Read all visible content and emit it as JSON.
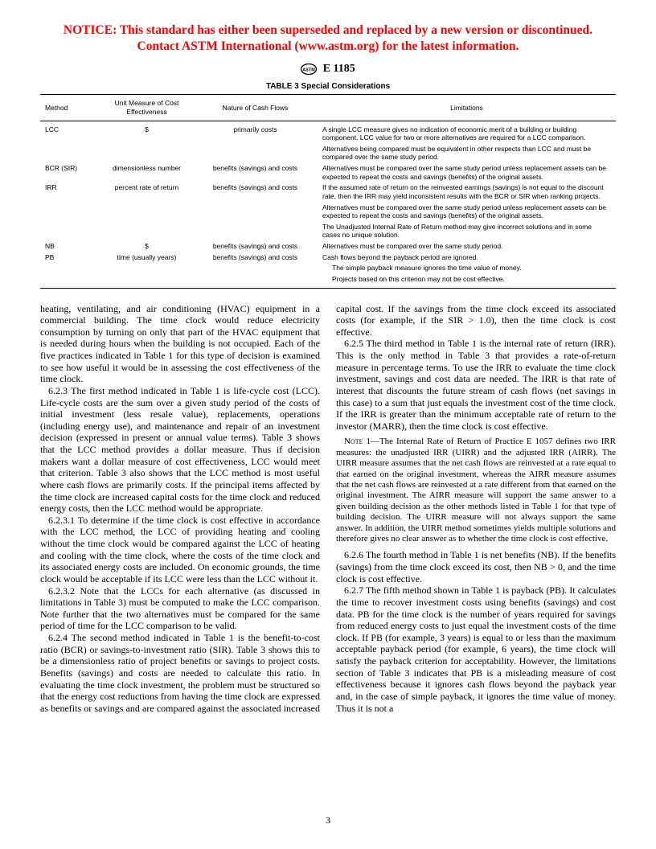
{
  "notice": {
    "color": "#ff0000",
    "line1": "NOTICE: This standard has either been superseded and replaced by a new version or discontinued.",
    "line2": "Contact ASTM International (www.astm.org) for the latest information."
  },
  "designation": "E 1185",
  "table": {
    "title": "TABLE 3  Special Considerations",
    "headers": [
      "Method",
      "Unit Measure of Cost Effectiveness",
      "Nature of Cash Flows",
      "Limitations"
    ],
    "rows": [
      {
        "method": "LCC",
        "unit": "$",
        "nature": "primarily costs",
        "limit": "A single LCC measure gives no indication of economic merit of a building or building component. LCC value for two or more alternatives are required for a LCC comparison."
      },
      {
        "method": "",
        "unit": "",
        "nature": "",
        "limit": "Alternatives being compared must be equivalent in other respects than LCC and must be compared over the same study period."
      },
      {
        "method": "BCR (SIR)",
        "unit": "dimensionless number",
        "nature": "benefits (savings) and costs",
        "limit": "Alternatives must be compared over the same study period unless replacement assets can be expected to repeat the costs and savings (benefits) of the original assets."
      },
      {
        "method": "IRR",
        "unit": "percent rate of return",
        "nature": "benefits (savings) and costs",
        "limit": "If the assumed rate of return on the reinvested earnings (savings) is not equal to the discount rate, then the IRR may yield inconsistent results with the BCR or SIR when ranking projects."
      },
      {
        "method": "",
        "unit": "",
        "nature": "",
        "limit": "Alternatives must be compared over the same study period unless replacement assets can be expected to repeat the costs and savings (benefits) of the original assets."
      },
      {
        "method": "",
        "unit": "",
        "nature": "",
        "limit": "The Unadjusted Internal Rate of Return method may give incorrect solutions and in some cases no unique solution."
      },
      {
        "method": "NB",
        "unit": "$",
        "nature": "benefits (savings) and costs",
        "limit": "Alternatives must be compared over the same study period."
      },
      {
        "method": "PB",
        "unit": "time (usually years)",
        "nature": "benefits (savings) and costs",
        "limit": "Cash flows beyond the payback period are ignored."
      },
      {
        "method": "",
        "unit": "",
        "nature": "",
        "limit": "The simple payback measure ignores the time value of money.",
        "indent": true
      },
      {
        "method": "",
        "unit": "",
        "nature": "",
        "limit": "Projects based on this criterion may not be cost effective.",
        "indent": true
      }
    ]
  },
  "paragraphs": [
    {
      "t": "heating, ventilating, and air conditioning (HVAC) equipment in a commercial building. The time clock would reduce electricity consumption by turning on only that part of the HVAC equipment that is needed during hours when the building is not occupied. Each of the five practices indicated in Table 1 for this type of decision is examined to see how useful it would be in assessing the cost effectiveness of the time clock.",
      "noindent": true
    },
    {
      "t": "6.2.3 The first method indicated in Table 1 is life-cycle cost (LCC). Life-cycle costs are the sum over a given study period of the costs of initial investment (less resale value), replacements, operations (including energy use), and maintenance and repair of an investment decision (expressed in present or annual value terms). Table 3 shows that the LCC method provides a dollar measure. Thus if decision makers want a dollar measure of cost effectiveness, LCC would meet that criterion. Table 3 also shows that the LCC method is most useful where cash flows are primarily costs. If the principal items affected by the time clock are increased capital costs for the time clock and reduced energy costs, then the LCC method would be appropriate."
    },
    {
      "t": "6.2.3.1 To determine if the time clock is cost effective in accordance with the LCC method, the LCC of providing heating and cooling without the time clock would be compared against the LCC of heating and cooling with the time clock, where the costs of the time clock and its associated energy costs are included. On economic grounds, the time clock would be acceptable if its LCC were less than the LCC without it."
    },
    {
      "t": "6.2.3.2 Note that the LCCs for each alternative (as discussed in limitations in Table 3) must be computed to make the LCC comparison. Note further that the two alternatives must be compared for the same period of time for the LCC comparison to be valid."
    },
    {
      "t": "6.2.4 The second method indicated in Table 1 is the benefit-to-cost ratio (BCR) or savings-to-investment ratio (SIR). Table 3 shows this to be a dimensionless ratio of project benefits or savings to project costs. Benefits (savings) and costs are needed to calculate this ratio. In evaluating the time clock investment, the problem must be structured so that the energy cost reductions from having the time clock are expressed as benefits or savings and are compared against the associated increased capital cost. If the savings from the time clock exceed its associated costs (for example, if the SIR > 1.0), then the time clock is cost effective."
    },
    {
      "t": "6.2.5 The third method in Table 1 is the internal rate of return (IRR). This is the only method in Table 3 that provides a rate-of-return measure in percentage terms. To use the IRR to evaluate the time clock investment, savings and cost data are needed. The IRR is that rate of interest that discounts the future stream of cash flows (net savings in this case) to a sum that just equals the investment cost of the time clock. If the IRR is greater than the minimum acceptable rate of return to the investor (MARR), then the time clock is cost effective."
    },
    {
      "t": "NOTE 1—The Internal Rate of Return of Practice E 1057 defines two IRR measures: the unadjusted IRR (UIRR) and the adjusted IRR (AIRR). The UIRR measure assumes that the net cash flows are reinvested at a rate equal to that earned on the original investment, whereas the AIRR measure assumes that the net cash flows are reinvested at a rate different from that earned on the original investment. The AIRR measure will support the same answer to a given building decision as the other methods listed in Table 1 for that type of building decision. The UIRR measure will not always support the same answer. In addition, the UIRR method sometimes yields multiple solutions and therefore gives no clear answer as to whether the time clock is cost effective.",
      "note": true
    },
    {
      "t": "6.2.6 The fourth method in Table 1 is net benefits (NB). If the benefits (savings) from the time clock exceed its cost, then NB > 0, and the time clock is cost effective."
    },
    {
      "t": "6.2.7 The fifth method shown in Table 1 is payback (PB). It calculates the time to recover investment costs using benefits (savings) and cost data. PB for the time clock is the number of years required for savings from reduced energy costs to just equal the investment costs of the time clock. If PB (for example, 3 years) is equal to or less than the maximum acceptable payback period (for example, 6 years), the time clock will satisfy the payback criterion for acceptability. However, the limitations section of Table 3 indicates that PB is a misleading measure of cost effectiveness because it ignores cash flows beyond the payback year and, in the case of simple payback, it ignores the time value of money. Thus it is not a"
    }
  ],
  "pageNumber": "3"
}
